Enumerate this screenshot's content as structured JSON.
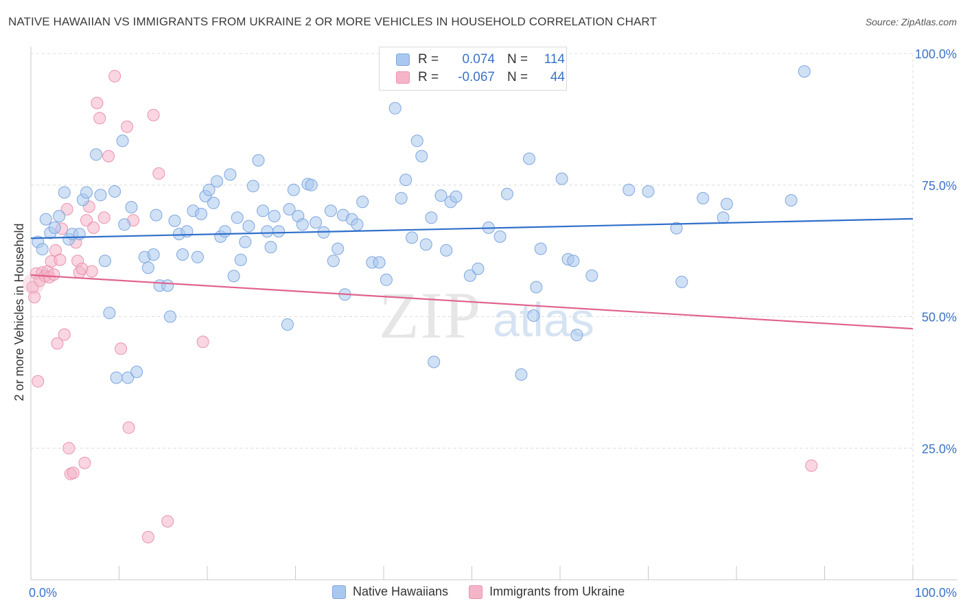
{
  "title": "NATIVE HAWAIIAN VS IMMIGRANTS FROM UKRAINE 2 OR MORE VEHICLES IN HOUSEHOLD CORRELATION CHART",
  "source": "Source: ZipAtlas.com",
  "watermark": {
    "zip": "ZIP",
    "atlas": "atlas"
  },
  "colors": {
    "blue_fill": "#a9c8ef",
    "blue_stroke": "#7ea6dd",
    "blue_line": "#2f6fca",
    "pink_fill": "#f4b5c8",
    "pink_stroke": "#ea92ae",
    "pink_line": "#e0628c",
    "axis_text_blue": "#3a72c8",
    "grid": "#dcdcdc"
  },
  "legend": {
    "rows": [
      {
        "r_label": "R =",
        "r_value": "0.074",
        "n_label": "N =",
        "n_value": "114"
      },
      {
        "r_label": "R =",
        "r_value": "-0.067",
        "n_label": "N =",
        "n_value": "44"
      }
    ]
  },
  "bottom_legend": {
    "series1": "Native Hawaiians",
    "series2": "Immigrants from Ukraine"
  },
  "chart_data": {
    "type": "scatter",
    "ylabel": "2 or more Vehicles in Household",
    "xlim": [
      0,
      100
    ],
    "ylim": [
      0,
      100
    ],
    "x_tick_labels": [
      {
        "value": 0,
        "label": "0.0%"
      },
      {
        "value": 100,
        "label": "100.0%"
      }
    ],
    "y_tick_labels": [
      {
        "value": 25,
        "label": "25.0%"
      },
      {
        "value": 50,
        "label": "50.0%"
      },
      {
        "value": 75,
        "label": "75.0%"
      },
      {
        "value": 100,
        "label": "100.0%"
      }
    ],
    "grid": true,
    "series": [
      {
        "name": "Native Hawaiians",
        "trend": {
          "x": [
            0,
            100
          ],
          "y": [
            64.9,
            68.6
          ]
        },
        "points": [
          [
            0.8,
            64.2
          ],
          [
            1.3,
            62.8
          ],
          [
            1.7,
            68.5
          ],
          [
            2.2,
            65.9
          ],
          [
            2.7,
            66.9
          ],
          [
            3.2,
            69.1
          ],
          [
            3.8,
            73.6
          ],
          [
            4.3,
            64.7
          ],
          [
            4.7,
            65.7
          ],
          [
            5.5,
            65.7
          ],
          [
            5.9,
            72.2
          ],
          [
            6.3,
            73.6
          ],
          [
            7.4,
            80.8
          ],
          [
            7.9,
            73.1
          ],
          [
            8.4,
            60.6
          ],
          [
            8.9,
            50.7
          ],
          [
            9.5,
            73.8
          ],
          [
            9.7,
            38.4
          ],
          [
            10.4,
            83.4
          ],
          [
            10.6,
            67.5
          ],
          [
            11.0,
            38.4
          ],
          [
            11.4,
            70.8
          ],
          [
            12.0,
            39.5
          ],
          [
            12.9,
            61.3
          ],
          [
            13.3,
            59.3
          ],
          [
            13.9,
            61.8
          ],
          [
            14.2,
            69.3
          ],
          [
            14.6,
            55.9
          ],
          [
            15.5,
            55.9
          ],
          [
            15.8,
            50.0
          ],
          [
            16.3,
            68.2
          ],
          [
            16.8,
            65.7
          ],
          [
            17.2,
            61.8
          ],
          [
            17.7,
            66.2
          ],
          [
            18.4,
            70.1
          ],
          [
            18.9,
            61.3
          ],
          [
            19.3,
            69.5
          ],
          [
            19.8,
            72.9
          ],
          [
            20.2,
            74.1
          ],
          [
            20.7,
            71.6
          ],
          [
            21.1,
            75.7
          ],
          [
            21.5,
            65.2
          ],
          [
            22.0,
            66.2
          ],
          [
            22.6,
            77.0
          ],
          [
            23.0,
            57.7
          ],
          [
            23.4,
            68.8
          ],
          [
            23.8,
            60.8
          ],
          [
            24.3,
            64.2
          ],
          [
            24.7,
            67.2
          ],
          [
            25.2,
            74.8
          ],
          [
            25.8,
            79.7
          ],
          [
            26.3,
            70.1
          ],
          [
            26.8,
            66.2
          ],
          [
            27.2,
            63.2
          ],
          [
            27.6,
            69.1
          ],
          [
            28.1,
            66.2
          ],
          [
            29.1,
            48.5
          ],
          [
            29.3,
            70.4
          ],
          [
            29.8,
            74.1
          ],
          [
            30.3,
            69.1
          ],
          [
            30.8,
            67.5
          ],
          [
            31.4,
            75.2
          ],
          [
            31.8,
            75.0
          ],
          [
            32.3,
            67.9
          ],
          [
            33.2,
            66.0
          ],
          [
            34.0,
            70.1
          ],
          [
            34.3,
            60.6
          ],
          [
            34.8,
            62.9
          ],
          [
            35.4,
            69.3
          ],
          [
            35.6,
            54.2
          ],
          [
            36.4,
            68.5
          ],
          [
            37.0,
            67.5
          ],
          [
            37.6,
            71.8
          ],
          [
            38.7,
            60.3
          ],
          [
            39.5,
            60.3
          ],
          [
            40.3,
            57.0
          ],
          [
            41.3,
            89.6
          ],
          [
            42.0,
            72.5
          ],
          [
            42.5,
            76.0
          ],
          [
            43.2,
            65.0
          ],
          [
            43.8,
            83.4
          ],
          [
            44.3,
            80.5
          ],
          [
            44.8,
            63.7
          ],
          [
            45.4,
            68.8
          ],
          [
            45.7,
            41.4
          ],
          [
            46.5,
            73.0
          ],
          [
            47.1,
            62.6
          ],
          [
            47.6,
            71.8
          ],
          [
            48.2,
            72.8
          ],
          [
            49.8,
            57.8
          ],
          [
            50.7,
            59.1
          ],
          [
            51.9,
            66.9
          ],
          [
            53.2,
            65.2
          ],
          [
            54.0,
            73.3
          ],
          [
            55.6,
            39.0
          ],
          [
            56.5,
            80.0
          ],
          [
            57.0,
            50.2
          ],
          [
            57.3,
            55.6
          ],
          [
            57.8,
            62.9
          ],
          [
            60.2,
            76.2
          ],
          [
            60.9,
            60.9
          ],
          [
            61.5,
            60.6
          ],
          [
            61.9,
            46.5
          ],
          [
            63.6,
            57.8
          ],
          [
            67.8,
            74.1
          ],
          [
            70.0,
            73.8
          ],
          [
            73.2,
            66.8
          ],
          [
            73.8,
            56.6
          ],
          [
            76.2,
            72.5
          ],
          [
            78.5,
            68.8
          ],
          [
            78.9,
            71.4
          ],
          [
            86.2,
            72.1
          ],
          [
            87.7,
            96.6
          ]
        ]
      },
      {
        "name": "Immigrants from Ukraine",
        "trend": {
          "x": [
            0,
            100
          ],
          "y": [
            57.9,
            47.7
          ]
        },
        "points": [
          [
            0.2,
            55.6
          ],
          [
            0.4,
            53.7
          ],
          [
            0.6,
            58.2
          ],
          [
            0.8,
            37.7
          ],
          [
            1.0,
            56.8
          ],
          [
            1.3,
            58.4
          ],
          [
            1.6,
            57.7
          ],
          [
            1.9,
            58.6
          ],
          [
            2.1,
            57.5
          ],
          [
            2.3,
            60.5
          ],
          [
            2.6,
            58.0
          ],
          [
            2.8,
            62.6
          ],
          [
            3.0,
            44.9
          ],
          [
            3.3,
            60.8
          ],
          [
            3.5,
            66.7
          ],
          [
            3.8,
            46.6
          ],
          [
            4.1,
            70.4
          ],
          [
            4.3,
            25.0
          ],
          [
            4.5,
            20.1
          ],
          [
            4.8,
            20.3
          ],
          [
            5.1,
            64.1
          ],
          [
            5.3,
            60.6
          ],
          [
            5.5,
            58.4
          ],
          [
            5.8,
            59.1
          ],
          [
            6.1,
            22.2
          ],
          [
            6.3,
            68.3
          ],
          [
            6.6,
            70.9
          ],
          [
            6.9,
            58.6
          ],
          [
            7.1,
            66.9
          ],
          [
            7.5,
            90.6
          ],
          [
            7.8,
            87.7
          ],
          [
            8.3,
            68.8
          ],
          [
            8.8,
            80.5
          ],
          [
            9.5,
            95.7
          ],
          [
            10.2,
            43.9
          ],
          [
            10.9,
            86.1
          ],
          [
            11.1,
            28.9
          ],
          [
            11.6,
            68.3
          ],
          [
            13.3,
            8.1
          ],
          [
            13.9,
            88.3
          ],
          [
            14.5,
            77.2
          ],
          [
            15.5,
            11.1
          ],
          [
            19.5,
            45.2
          ],
          [
            88.5,
            21.7
          ]
        ]
      }
    ]
  }
}
